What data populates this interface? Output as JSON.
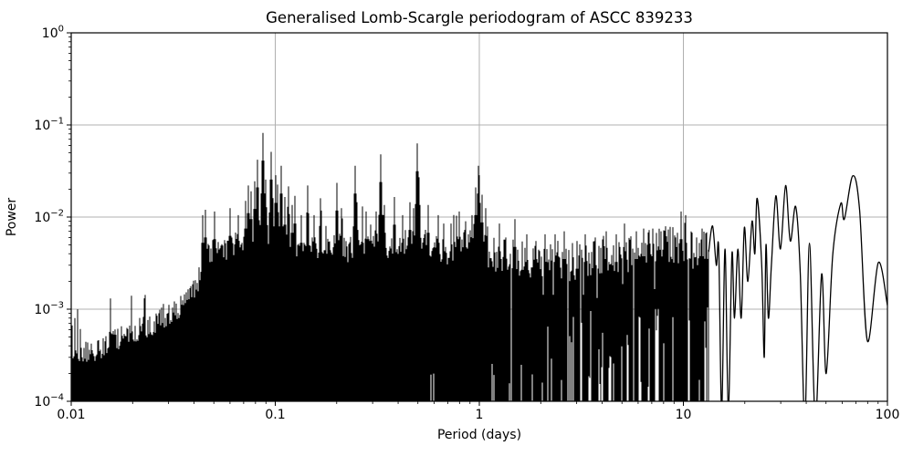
{
  "chart_data": {
    "type": "line",
    "title": "Generalised Lomb-Scargle periodogram of ASCC 839233",
    "xlabel": "Period (days)",
    "ylabel": "Power",
    "xscale": "log",
    "yscale": "log",
    "xlim": [
      0.01,
      100
    ],
    "ylim": [
      0.0001,
      1
    ],
    "grid": true,
    "legend": false,
    "line_color": "#000000",
    "grid_color": "#b0b0b0",
    "background_color": "#ffffff",
    "xticks": [
      {
        "v": 0.01,
        "label": "0.01"
      },
      {
        "v": 0.1,
        "label": "0.1"
      },
      {
        "v": 1,
        "label": "1"
      },
      {
        "v": 10,
        "label": "10"
      },
      {
        "v": 100,
        "label": "100"
      }
    ],
    "yticks": [
      {
        "v": 1,
        "base": "10",
        "exp": "0"
      },
      {
        "v": 0.1,
        "base": "10",
        "exp": "−1"
      },
      {
        "v": 0.01,
        "base": "10",
        "exp": "−2"
      },
      {
        "v": 0.001,
        "base": "10",
        "exp": "−3"
      },
      {
        "v": 0.0001,
        "base": "10",
        "exp": "−4"
      }
    ],
    "main_peak": {
      "period_days": 0.087,
      "power": 0.082
    },
    "dense_region_period_range": [
      0.01,
      13.3
    ],
    "upper_envelope": [
      [
        0.01,
        0.0003
      ],
      [
        0.0125,
        0.00035
      ],
      [
        0.016,
        0.00045
      ],
      [
        0.02,
        0.00055
      ],
      [
        0.025,
        0.0007
      ],
      [
        0.032,
        0.0009
      ],
      [
        0.038,
        0.0013
      ],
      [
        0.042,
        0.002
      ],
      [
        0.045,
        0.0035
      ],
      [
        0.05,
        0.0045
      ],
      [
        0.056,
        0.0042
      ],
      [
        0.063,
        0.005
      ],
      [
        0.071,
        0.0055
      ],
      [
        0.08,
        0.006
      ],
      [
        0.09,
        0.0065
      ],
      [
        0.1,
        0.006
      ],
      [
        0.112,
        0.0055
      ],
      [
        0.125,
        0.0048
      ],
      [
        0.14,
        0.005
      ],
      [
        0.16,
        0.0045
      ],
      [
        0.18,
        0.005
      ],
      [
        0.2,
        0.0052
      ],
      [
        0.225,
        0.0042
      ],
      [
        0.25,
        0.0052
      ],
      [
        0.28,
        0.0045
      ],
      [
        0.315,
        0.0055
      ],
      [
        0.355,
        0.0048
      ],
      [
        0.4,
        0.0045
      ],
      [
        0.45,
        0.006
      ],
      [
        0.5,
        0.0062
      ],
      [
        0.56,
        0.0052
      ],
      [
        0.63,
        0.0045
      ],
      [
        0.71,
        0.004
      ],
      [
        0.8,
        0.0048
      ],
      [
        0.9,
        0.0062
      ],
      [
        1.0,
        0.0068
      ],
      [
        1.12,
        0.0045
      ],
      [
        1.25,
        0.004
      ],
      [
        1.4,
        0.004
      ],
      [
        1.6,
        0.0038
      ],
      [
        1.8,
        0.0035
      ],
      [
        2.0,
        0.0036
      ],
      [
        2.24,
        0.0032
      ],
      [
        2.5,
        0.0035
      ],
      [
        2.8,
        0.0032
      ],
      [
        3.15,
        0.0036
      ],
      [
        3.55,
        0.0038
      ],
      [
        4.0,
        0.004
      ],
      [
        4.5,
        0.0036
      ],
      [
        5.0,
        0.0042
      ],
      [
        5.6,
        0.0038
      ],
      [
        6.3,
        0.0045
      ],
      [
        7.1,
        0.005
      ],
      [
        8.0,
        0.0052
      ],
      [
        9.0,
        0.0048
      ],
      [
        10.0,
        0.0055
      ],
      [
        11.2,
        0.004
      ],
      [
        12.6,
        0.0048
      ],
      [
        13.3,
        0.0042
      ]
    ],
    "peaks": [
      [
        0.044,
        0.0105
      ],
      [
        0.0455,
        0.012
      ],
      [
        0.0505,
        0.0115
      ],
      [
        0.06,
        0.0125
      ],
      [
        0.066,
        0.0105
      ],
      [
        0.0715,
        0.015
      ],
      [
        0.074,
        0.022
      ],
      [
        0.0765,
        0.019
      ],
      [
        0.0795,
        0.0245
      ],
      [
        0.0815,
        0.042
      ],
      [
        0.087,
        0.082
      ],
      [
        0.0895,
        0.0255
      ],
      [
        0.0955,
        0.051
      ],
      [
        0.1,
        0.0285
      ],
      [
        0.103,
        0.0225
      ],
      [
        0.107,
        0.036
      ],
      [
        0.111,
        0.0165
      ],
      [
        0.116,
        0.0215
      ],
      [
        0.1205,
        0.0135
      ],
      [
        0.125,
        0.017
      ],
      [
        0.1335,
        0.0105
      ],
      [
        0.144,
        0.022
      ],
      [
        0.1555,
        0.0105
      ],
      [
        0.166,
        0.016
      ],
      [
        0.178,
        0.008
      ],
      [
        0.2,
        0.0235
      ],
      [
        0.211,
        0.0125
      ],
      [
        0.246,
        0.036
      ],
      [
        0.2525,
        0.0145
      ],
      [
        0.28,
        0.0115
      ],
      [
        0.313,
        0.0115
      ],
      [
        0.33,
        0.048
      ],
      [
        0.3415,
        0.0135
      ],
      [
        0.385,
        0.0165
      ],
      [
        0.42,
        0.0105
      ],
      [
        0.457,
        0.0145
      ],
      [
        0.478,
        0.0125
      ],
      [
        0.496,
        0.063
      ],
      [
        0.505,
        0.027
      ],
      [
        0.56,
        0.0135
      ],
      [
        0.63,
        0.0105
      ],
      [
        0.672,
        0.0085
      ],
      [
        0.73,
        0.0085
      ],
      [
        0.8,
        0.0115
      ],
      [
        0.855,
        0.009
      ],
      [
        0.92,
        0.0105
      ],
      [
        0.955,
        0.021
      ],
      [
        0.985,
        0.036
      ],
      [
        1.005,
        0.0285
      ],
      [
        1.03,
        0.0175
      ],
      [
        1.08,
        0.0125
      ],
      [
        1.25,
        0.0085
      ],
      [
        1.35,
        0.006
      ],
      [
        1.5,
        0.0095
      ],
      [
        1.7,
        0.0065
      ],
      [
        1.9,
        0.0055
      ],
      [
        2.1,
        0.0065
      ],
      [
        2.35,
        0.0065
      ],
      [
        2.6,
        0.007
      ],
      [
        3.0,
        0.0055
      ],
      [
        3.3,
        0.0065
      ],
      [
        3.7,
        0.006
      ],
      [
        4.2,
        0.007
      ],
      [
        4.7,
        0.0065
      ],
      [
        5.15,
        0.0085
      ],
      [
        5.55,
        0.006
      ],
      [
        5.9,
        0.007
      ],
      [
        6.4,
        0.0075
      ],
      [
        7.1,
        0.0075
      ],
      [
        7.8,
        0.007
      ],
      [
        8.6,
        0.0065
      ],
      [
        9.15,
        0.006
      ],
      [
        9.7,
        0.0115
      ],
      [
        10.3,
        0.0105
      ],
      [
        11.0,
        0.0055
      ],
      [
        11.6,
        0.006
      ],
      [
        12.3,
        0.0075
      ]
    ],
    "resolved_curve": [
      [
        13.3,
        0.0042
      ],
      [
        13.9,
        0.008
      ],
      [
        14.5,
        0.003
      ],
      [
        14.9,
        0.0045
      ],
      [
        15.4,
        8e-05
      ],
      [
        16.0,
        0.0045
      ],
      [
        16.6,
        8e-05
      ],
      [
        17.3,
        0.004
      ],
      [
        17.8,
        0.0008
      ],
      [
        18.5,
        0.0045
      ],
      [
        19.2,
        0.0008
      ],
      [
        19.9,
        0.0077
      ],
      [
        20.7,
        0.002
      ],
      [
        21.7,
        0.009
      ],
      [
        22.4,
        0.004
      ],
      [
        23.0,
        0.016
      ],
      [
        24.2,
        0.003
      ],
      [
        24.9,
        0.0003
      ],
      [
        25.4,
        0.005
      ],
      [
        26.1,
        0.0008
      ],
      [
        27.0,
        0.003
      ],
      [
        28.4,
        0.017
      ],
      [
        29.9,
        0.0045
      ],
      [
        31.7,
        0.022
      ],
      [
        33.4,
        0.0055
      ],
      [
        35.5,
        0.013
      ],
      [
        37.4,
        0.0025
      ],
      [
        39.4,
        6e-05
      ],
      [
        41.5,
        0.0052
      ],
      [
        44.3,
        6e-05
      ],
      [
        47.6,
        0.0024
      ],
      [
        50.1,
        0.0002
      ],
      [
        54.0,
        0.004
      ],
      [
        59.1,
        0.014
      ],
      [
        61.5,
        0.0095
      ],
      [
        67.6,
        0.028
      ],
      [
        73.0,
        0.012
      ],
      [
        79.8,
        0.00045
      ],
      [
        90.2,
        0.0032
      ],
      [
        100,
        0.0011
      ]
    ]
  }
}
